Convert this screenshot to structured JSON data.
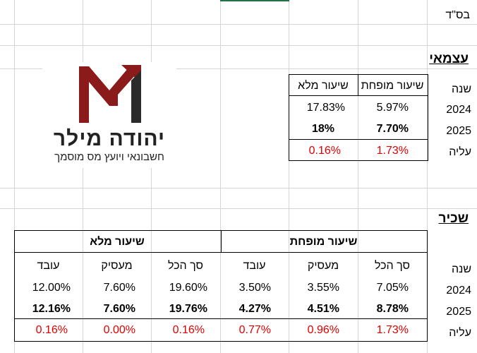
{
  "header": {
    "bsd": "בס\"ד"
  },
  "logo": {
    "name": "יהודה מילר",
    "subtitle": "חשבונאי ויועץ מס מוסמך"
  },
  "self_employed": {
    "title": "עצמאי",
    "headers": {
      "reduced": "שיעור מופחת",
      "full": "שיעור מלא"
    },
    "row_labels": {
      "year": "שנה",
      "y2024": "2024",
      "y2025": "2025",
      "increase": "עליה"
    },
    "values": {
      "reduced_2024": "5.97%",
      "full_2024": "17.83%",
      "reduced_2025": "7.70%",
      "full_2025": "18%",
      "reduced_inc": "1.73%",
      "full_inc": "0.16%"
    }
  },
  "employee": {
    "title": "שכיר",
    "headers": {
      "reduced": "שיעור מופחת",
      "full": "שיעור מלא",
      "total": "סך הכל",
      "employer": "מעסיק",
      "worker": "עובד"
    },
    "row_labels": {
      "year": "שנה",
      "y2024": "2024",
      "y2025": "2025",
      "increase": "עליה"
    },
    "reduced": {
      "total_2024": "7.05%",
      "employer_2024": "3.55%",
      "worker_2024": "3.50%",
      "total_2025": "8.78%",
      "employer_2025": "4.51%",
      "worker_2025": "4.27%",
      "total_inc": "1.73%",
      "employer_inc": "0.96%",
      "worker_inc": "0.77%"
    },
    "full": {
      "total_2024": "19.60%",
      "employer_2024": "7.60%",
      "worker_2024": "12.00%",
      "total_2025": "19.76%",
      "employer_2025": "7.60%",
      "worker_2025": "12.16%",
      "total_inc": "0.16%",
      "employer_inc": "0.00%",
      "worker_inc": "0.16%"
    }
  },
  "colors": {
    "logo_red": "#8b1a1a",
    "logo_dark": "#2b2b2b",
    "increase_red": "#e00000"
  }
}
